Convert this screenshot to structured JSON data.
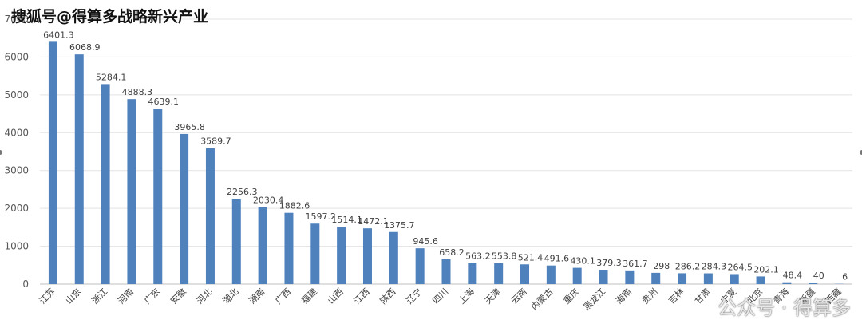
{
  "watermark_top": "搜狐号@得算多战略新兴产业",
  "watermark_bottom": "公众号 · 得算多",
  "chart_data": {
    "type": "bar",
    "title": "",
    "xlabel": "",
    "ylabel": "",
    "ylim": [
      0,
      7000
    ],
    "yticks": [
      0,
      1000,
      2000,
      3000,
      4000,
      5000,
      6000,
      7000
    ],
    "grid": true,
    "bar_color": "#4f81bd",
    "categories": [
      "江苏",
      "山东",
      "浙江",
      "河南",
      "广东",
      "安徽",
      "河北",
      "湖北",
      "湖南",
      "广西",
      "福建",
      "山西",
      "江西",
      "陕西",
      "辽宁",
      "四川",
      "上海",
      "天津",
      "云南",
      "内蒙古",
      "重庆",
      "黑龙江",
      "海南",
      "贵州",
      "吉林",
      "甘肃",
      "宁夏",
      "北京",
      "青海",
      "新疆",
      "西藏"
    ],
    "values": [
      6401.3,
      6068.9,
      5284.1,
      4888.3,
      4639.1,
      3965.8,
      3589.7,
      2256.3,
      2030.4,
      1882.6,
      1597.2,
      1514.1,
      1472.1,
      1375.7,
      945.6,
      658.2,
      563.2,
      553.8,
      521.4,
      491.6,
      430.1,
      379.3,
      361.7,
      298,
      286.2,
      284.3,
      264.5,
      202.1,
      48.4,
      40,
      6
    ],
    "value_labels": [
      "6401.3",
      "6068.9",
      "5284.1",
      "4888.3",
      "4639.1",
      "3965.8",
      "3589.7",
      "2256.3",
      "2030.4",
      "1882.6",
      "1597.2",
      "1514.1",
      "1472.1",
      "1375.7",
      "945.6",
      "658.2",
      "563.2",
      "553.8",
      "521.4",
      "491.6",
      "430.1",
      "379.3",
      "361.7",
      "298",
      "286.2",
      "284.3",
      "264.5",
      "202.1",
      "48.4",
      "40",
      "6"
    ]
  }
}
